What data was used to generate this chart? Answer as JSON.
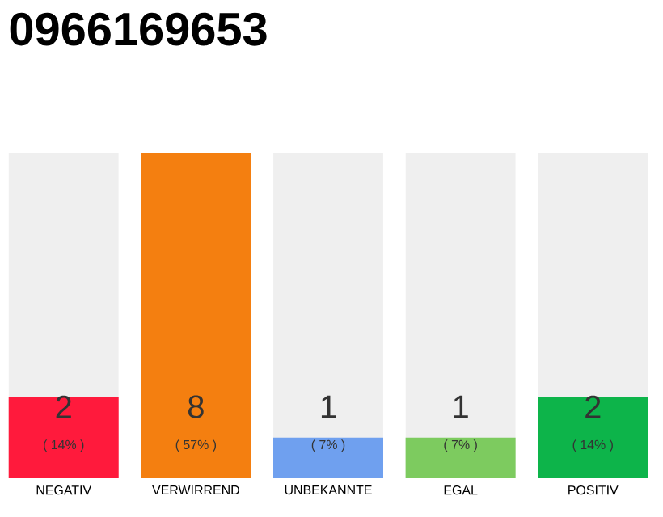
{
  "chart_data": {
    "type": "bar",
    "title": "0966169653",
    "categories": [
      "NEGATIV",
      "VERWIRREND",
      "UNBEKANNTE",
      "EGAL",
      "POSITIV"
    ],
    "values": [
      2,
      8,
      1,
      1,
      2
    ],
    "colors": [
      "#ff1a3c",
      "#f47f10",
      "#6fa0ef",
      "#7dcb5f",
      "#0db44a"
    ],
    "ylim": [
      0,
      8
    ],
    "data_labels": true,
    "annotations": [
      "( 14% )",
      "( 57% )",
      "( 7% )",
      "( 7% )",
      "( 14% )"
    ]
  }
}
